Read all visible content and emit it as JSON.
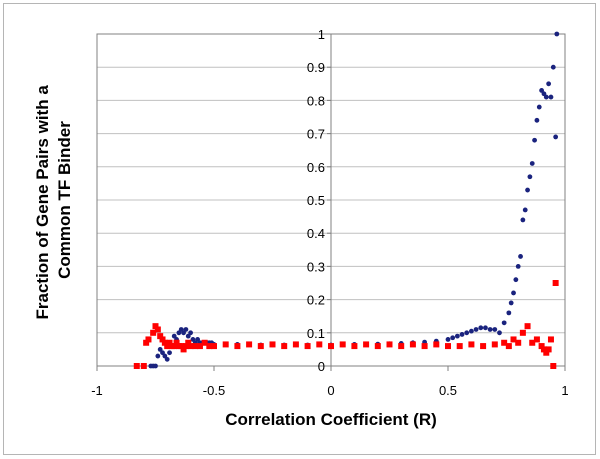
{
  "chart_data": {
    "type": "scatter",
    "xlabel": "Correlation Coefficient (R)",
    "ylabel_lines": [
      "Fraction of Gene Pairs with a",
      "Common TF Binder"
    ],
    "xlim": [
      -1,
      1
    ],
    "ylim": [
      0,
      1
    ],
    "x_ticks": [
      -1,
      -0.5,
      0,
      0.5,
      1
    ],
    "x_tick_labels": [
      "-1",
      "-0.5",
      "0",
      "0.5",
      "1"
    ],
    "y_ticks": [
      0,
      0.1,
      0.2,
      0.3,
      0.4,
      0.5,
      0.6,
      0.7,
      0.8,
      0.9,
      1
    ],
    "y_tick_labels": [
      "0",
      "0.1",
      "0.2",
      "0.3",
      "0.4",
      "0.5",
      "0.6",
      "0.7",
      "0.8",
      "0.9",
      "1"
    ],
    "grid": "horizontal",
    "series": [
      {
        "marker": "circle",
        "color": "#1a237e",
        "x": [
          -0.77,
          -0.76,
          -0.75,
          -0.74,
          -0.73,
          -0.72,
          -0.71,
          -0.7,
          -0.69,
          -0.68,
          -0.67,
          -0.66,
          -0.65,
          -0.64,
          -0.63,
          -0.62,
          -0.61,
          -0.6,
          -0.59,
          -0.58,
          -0.57,
          -0.56,
          -0.55,
          -0.54,
          -0.53,
          -0.52,
          -0.51,
          -0.5,
          -0.45,
          -0.4,
          -0.35,
          -0.3,
          -0.25,
          -0.2,
          -0.15,
          -0.1,
          -0.05,
          0.0,
          0.05,
          0.1,
          0.15,
          0.2,
          0.25,
          0.3,
          0.35,
          0.4,
          0.45,
          0.5,
          0.52,
          0.54,
          0.56,
          0.58,
          0.6,
          0.62,
          0.64,
          0.66,
          0.68,
          0.7,
          0.72,
          0.74,
          0.76,
          0.77,
          0.78,
          0.79,
          0.8,
          0.81,
          0.82,
          0.83,
          0.84,
          0.85,
          0.86,
          0.87,
          0.88,
          0.89,
          0.9,
          0.91,
          0.92,
          0.93,
          0.94,
          0.95,
          0.96,
          0.965
        ],
        "y": [
          0.0,
          0.0,
          0.0,
          0.03,
          0.05,
          0.04,
          0.03,
          0.02,
          0.04,
          0.06,
          0.09,
          0.08,
          0.1,
          0.11,
          0.1,
          0.11,
          0.09,
          0.1,
          0.08,
          0.07,
          0.08,
          0.07,
          0.07,
          0.07,
          0.07,
          0.07,
          0.07,
          0.065,
          0.065,
          0.065,
          0.065,
          0.063,
          0.064,
          0.063,
          0.064,
          0.063,
          0.064,
          0.063,
          0.064,
          0.065,
          0.065,
          0.066,
          0.067,
          0.068,
          0.07,
          0.072,
          0.075,
          0.08,
          0.085,
          0.09,
          0.095,
          0.1,
          0.105,
          0.11,
          0.115,
          0.115,
          0.11,
          0.11,
          0.1,
          0.13,
          0.16,
          0.19,
          0.22,
          0.26,
          0.3,
          0.33,
          0.44,
          0.47,
          0.53,
          0.57,
          0.61,
          0.68,
          0.74,
          0.78,
          0.83,
          0.82,
          0.81,
          0.85,
          0.81,
          0.9,
          0.69,
          1.0
        ]
      },
      {
        "marker": "square",
        "color": "#ff0000",
        "x": [
          -0.83,
          -0.8,
          -0.79,
          -0.78,
          -0.76,
          -0.75,
          -0.74,
          -0.73,
          -0.72,
          -0.71,
          -0.7,
          -0.69,
          -0.68,
          -0.67,
          -0.66,
          -0.65,
          -0.64,
          -0.63,
          -0.62,
          -0.61,
          -0.6,
          -0.58,
          -0.56,
          -0.54,
          -0.52,
          -0.5,
          -0.45,
          -0.4,
          -0.35,
          -0.3,
          -0.25,
          -0.2,
          -0.15,
          -0.1,
          -0.05,
          0.0,
          0.05,
          0.1,
          0.15,
          0.2,
          0.25,
          0.3,
          0.35,
          0.4,
          0.45,
          0.5,
          0.55,
          0.6,
          0.65,
          0.7,
          0.74,
          0.76,
          0.78,
          0.8,
          0.82,
          0.84,
          0.86,
          0.88,
          0.9,
          0.91,
          0.92,
          0.93,
          0.94,
          0.95,
          0.96
        ],
        "y": [
          0.0,
          0.0,
          0.07,
          0.08,
          0.1,
          0.12,
          0.11,
          0.09,
          0.08,
          0.07,
          0.06,
          0.07,
          0.06,
          0.06,
          0.07,
          0.06,
          0.06,
          0.05,
          0.06,
          0.07,
          0.06,
          0.06,
          0.06,
          0.07,
          0.06,
          0.06,
          0.065,
          0.06,
          0.065,
          0.06,
          0.065,
          0.06,
          0.065,
          0.06,
          0.065,
          0.06,
          0.065,
          0.06,
          0.065,
          0.06,
          0.065,
          0.06,
          0.065,
          0.06,
          0.065,
          0.06,
          0.06,
          0.065,
          0.06,
          0.065,
          0.07,
          0.06,
          0.08,
          0.07,
          0.1,
          0.12,
          0.07,
          0.08,
          0.06,
          0.05,
          0.04,
          0.05,
          0.08,
          0.0,
          0.25
        ]
      }
    ]
  }
}
